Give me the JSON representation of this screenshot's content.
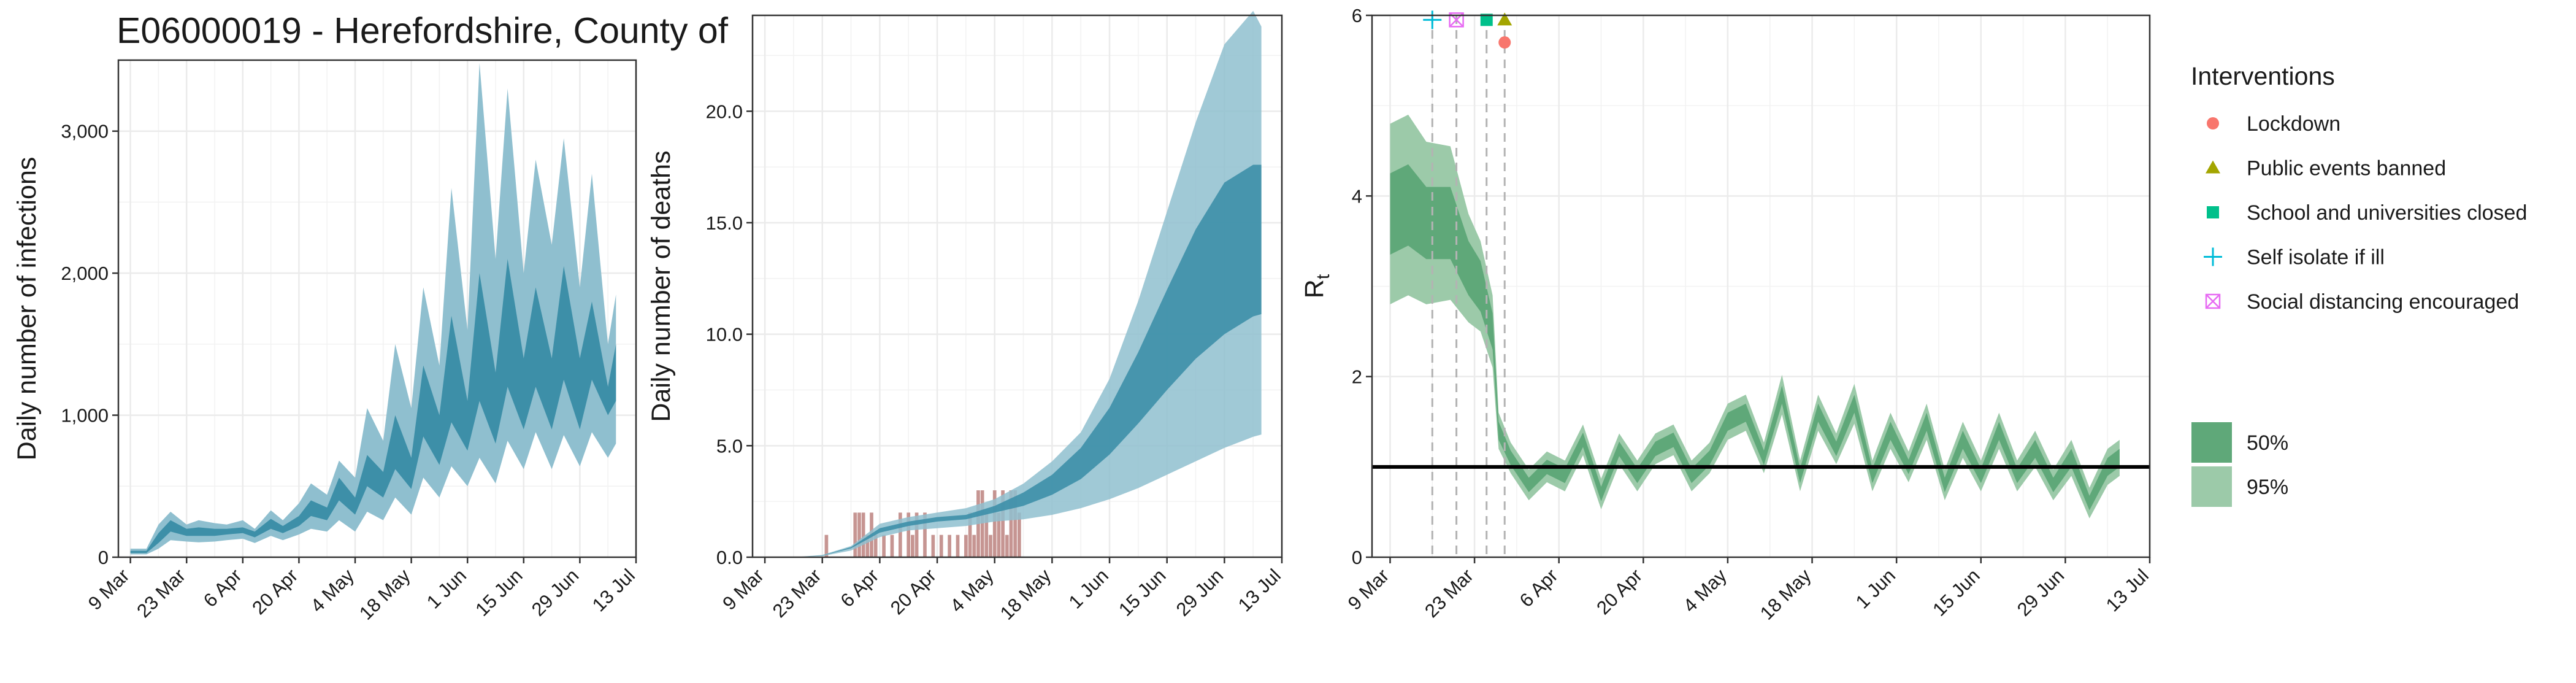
{
  "figure": {
    "title": "E06000019 - Herefordshire, County of"
  },
  "chart_data": [
    {
      "type": "area",
      "id": "infections",
      "ylabel": "Daily number of infections",
      "xlabel": "",
      "ylim": [
        0,
        3500
      ],
      "xlim": [
        -3,
        126
      ],
      "x_ticks": [
        0,
        14,
        28,
        42,
        56,
        70,
        84,
        98,
        112,
        126
      ],
      "x_tick_labels": [
        "9 Mar",
        "23 Mar",
        "6 Apr",
        "20 Apr",
        "4 May",
        "18 May",
        "1 Jun",
        "15 Jun",
        "29 Jun",
        "13 Jul"
      ],
      "y_ticks": [
        0,
        1000,
        2000,
        3000
      ],
      "y_tick_labels": [
        "0",
        "1,000",
        "2,000",
        "3,000"
      ],
      "grid": true,
      "colors": {
        "band95": "#8fbfcf",
        "band50": "#3d8fa8"
      },
      "knots_day": [
        0,
        4,
        7,
        10,
        14,
        17,
        21,
        24,
        28,
        31,
        35,
        38,
        42,
        45,
        49,
        52,
        56,
        59,
        63,
        66,
        70,
        73,
        77,
        80,
        84,
        87,
        91,
        94,
        98,
        101,
        105,
        108,
        112,
        115,
        119,
        121
      ],
      "ci95": {
        "lower": [
          20,
          20,
          60,
          120,
          110,
          105,
          110,
          120,
          130,
          100,
          150,
          120,
          160,
          200,
          180,
          260,
          180,
          320,
          260,
          420,
          300,
          560,
          420,
          640,
          500,
          700,
          520,
          820,
          620,
          880,
          620,
          860,
          640,
          880,
          700,
          800
        ],
        "upper": [
          60,
          60,
          230,
          320,
          230,
          260,
          240,
          230,
          260,
          200,
          330,
          260,
          380,
          520,
          440,
          680,
          560,
          1050,
          820,
          1500,
          1050,
          1900,
          1350,
          2600,
          1600,
          3480,
          2100,
          3300,
          2000,
          2800,
          2200,
          2950,
          1900,
          2700,
          1500,
          1850
        ]
      },
      "ci50": {
        "lower": [
          30,
          30,
          100,
          180,
          150,
          150,
          150,
          160,
          170,
          140,
          200,
          170,
          220,
          290,
          260,
          400,
          300,
          500,
          420,
          620,
          480,
          850,
          650,
          950,
          750,
          1100,
          800,
          1200,
          900,
          1200,
          900,
          1250,
          900,
          1250,
          1000,
          1100
        ],
        "upper": [
          45,
          45,
          170,
          260,
          200,
          210,
          200,
          200,
          210,
          180,
          270,
          220,
          290,
          400,
          350,
          560,
          420,
          720,
          600,
          1000,
          700,
          1350,
          1000,
          1700,
          1100,
          2000,
          1300,
          2100,
          1400,
          1900,
          1400,
          2050,
          1400,
          1800,
          1200,
          1500
        ]
      }
    },
    {
      "type": "area",
      "id": "deaths",
      "ylabel": "Daily number of deaths",
      "xlabel": "",
      "ylim": [
        0,
        24.3
      ],
      "xlim": [
        -3,
        126
      ],
      "x_ticks": [
        0,
        14,
        28,
        42,
        56,
        70,
        84,
        98,
        112,
        126
      ],
      "x_tick_labels": [
        "9 Mar",
        "23 Mar",
        "6 Apr",
        "20 Apr",
        "4 May",
        "18 May",
        "1 Jun",
        "15 Jun",
        "29 Jun",
        "13 Jul"
      ],
      "y_ticks": [
        0,
        5,
        10,
        15,
        20
      ],
      "y_tick_labels": [
        "0.0",
        "5.0",
        "10.0",
        "15.0",
        "20.0"
      ],
      "grid": true,
      "colors": {
        "band95": "#8fbfcf",
        "band50": "#3d8fa8",
        "observed": "#c08a86"
      },
      "knots_day": [
        0,
        7,
        14,
        21,
        28,
        35,
        42,
        49,
        56,
        63,
        70,
        77,
        84,
        91,
        98,
        105,
        112,
        119,
        121
      ],
      "ci95": {
        "lower": [
          0,
          0,
          0.05,
          0.3,
          0.9,
          1.2,
          1.3,
          1.4,
          1.6,
          1.7,
          1.9,
          2.2,
          2.6,
          3.1,
          3.7,
          4.3,
          4.9,
          5.4,
          5.5
        ],
        "upper": [
          0,
          0,
          0.1,
          0.5,
          1.5,
          1.8,
          2.0,
          2.2,
          2.6,
          3.3,
          4.3,
          5.6,
          8.0,
          11.5,
          15.5,
          19.5,
          23.0,
          24.5,
          23.8
        ]
      },
      "ci50": {
        "lower": [
          0,
          0,
          0.07,
          0.4,
          1.1,
          1.4,
          1.6,
          1.7,
          2.0,
          2.3,
          2.8,
          3.5,
          4.6,
          6.0,
          7.5,
          8.9,
          10.0,
          10.8,
          10.9
        ],
        "upper": [
          0,
          0,
          0.08,
          0.45,
          1.3,
          1.6,
          1.8,
          1.9,
          2.3,
          2.9,
          3.7,
          4.9,
          6.7,
          9.2,
          12.0,
          14.7,
          16.8,
          17.6,
          17.6
        ]
      },
      "observed_days": [
        15,
        22,
        23,
        24,
        25,
        26,
        27,
        29,
        31,
        33,
        35,
        36,
        37,
        39,
        41,
        43,
        45,
        47,
        49,
        50,
        51,
        52,
        53,
        54,
        55,
        56,
        57,
        58,
        59,
        60,
        61,
        62
      ],
      "observed_deaths": [
        1,
        2,
        2,
        2,
        1,
        2,
        1,
        1,
        1,
        2,
        2,
        1,
        2,
        2,
        1,
        1,
        1,
        1,
        1,
        2,
        1,
        3,
        3,
        2,
        1,
        3,
        2,
        3,
        1,
        3,
        3,
        2
      ]
    },
    {
      "type": "area",
      "id": "rt",
      "ylabel": "R",
      "ylabel_sub": "t",
      "xlabel": "",
      "ylim": [
        0,
        6
      ],
      "xlim": [
        -3,
        126
      ],
      "x_ticks": [
        0,
        14,
        28,
        42,
        56,
        70,
        84,
        98,
        112,
        126
      ],
      "x_tick_labels": [
        "9 Mar",
        "23 Mar",
        "6 Apr",
        "20 Apr",
        "4 May",
        "18 May",
        "1 Jun",
        "15 Jun",
        "29 Jun",
        "13 Jul"
      ],
      "y_ticks": [
        0,
        2,
        4,
        6
      ],
      "y_tick_labels": [
        "0",
        "2",
        "4",
        "6"
      ],
      "grid": true,
      "reference_line": 1,
      "colors": {
        "band95": "#9ccaa9",
        "band50": "#5fa879",
        "reference": "#000000",
        "marker_line": "#b3b3b3"
      },
      "knots_day": [
        0,
        3,
        6,
        10,
        13,
        15,
        17,
        18,
        20,
        23,
        26,
        29,
        32,
        35,
        38,
        41,
        44,
        47,
        50,
        53,
        56,
        59,
        62,
        65,
        68,
        71,
        74,
        77,
        80,
        83,
        86,
        89,
        92,
        95,
        98,
        101,
        104,
        107,
        110,
        113,
        116,
        119,
        121
      ],
      "median": [
        3.8,
        3.9,
        3.7,
        3.7,
        3.2,
        3.0,
        2.5,
        1.4,
        1.1,
        0.8,
        1.0,
        0.9,
        1.3,
        0.7,
        1.2,
        0.9,
        1.2,
        1.3,
        0.9,
        1.1,
        1.5,
        1.6,
        1.1,
        1.8,
        0.9,
        1.6,
        1.2,
        1.7,
        0.9,
        1.4,
        1.0,
        1.5,
        0.8,
        1.3,
        0.9,
        1.4,
        0.9,
        1.2,
        0.8,
        1.1,
        0.6,
        1.0,
        1.1
      ],
      "ci50_halfwidth": [
        0.45,
        0.45,
        0.4,
        0.4,
        0.3,
        0.28,
        0.2,
        0.1,
        0.08,
        0.08,
        0.08,
        0.08,
        0.08,
        0.08,
        0.08,
        0.08,
        0.08,
        0.08,
        0.08,
        0.08,
        0.1,
        0.1,
        0.08,
        0.1,
        0.08,
        0.1,
        0.08,
        0.1,
        0.08,
        0.1,
        0.08,
        0.1,
        0.08,
        0.1,
        0.08,
        0.1,
        0.08,
        0.1,
        0.08,
        0.1,
        0.08,
        0.1,
        0.1
      ],
      "ci95_halfwidth": [
        1.0,
        1.0,
        0.9,
        0.85,
        0.6,
        0.5,
        0.4,
        0.2,
        0.17,
        0.17,
        0.17,
        0.17,
        0.17,
        0.17,
        0.17,
        0.17,
        0.17,
        0.17,
        0.17,
        0.17,
        0.2,
        0.2,
        0.17,
        0.22,
        0.17,
        0.2,
        0.17,
        0.22,
        0.17,
        0.2,
        0.17,
        0.2,
        0.17,
        0.2,
        0.17,
        0.2,
        0.17,
        0.2,
        0.17,
        0.2,
        0.17,
        0.2,
        0.2
      ],
      "interventions": [
        {
          "day": 7,
          "y": 5.95,
          "marker": "cross",
          "color": "#00bcd8",
          "label": "Self isolate if ill"
        },
        {
          "day": 11,
          "y": 5.95,
          "marker": "boxx",
          "color": "#e76bf3",
          "label": "Social distancing encouraged"
        },
        {
          "day": 16,
          "y": 5.95,
          "marker": "square",
          "color": "#00c08b",
          "label": "School and universities closed"
        },
        {
          "day": 19,
          "y": 5.95,
          "marker": "triangle",
          "color": "#a3a500",
          "label": "Public events banned"
        },
        {
          "day": 19,
          "y": 5.7,
          "marker": "circle",
          "color": "#f8766d",
          "label": "Lockdown"
        }
      ]
    }
  ],
  "legend": {
    "interventions_title": "Interventions",
    "interventions": [
      {
        "label": "Lockdown",
        "marker": "circle",
        "color": "#f8766d"
      },
      {
        "label": "Public events banned",
        "marker": "triangle",
        "color": "#a3a500"
      },
      {
        "label": "School and universities closed",
        "marker": "square",
        "color": "#00c08b"
      },
      {
        "label": "Self isolate if ill",
        "marker": "cross",
        "color": "#00bcd8"
      },
      {
        "label": "Social distancing encouraged",
        "marker": "boxx",
        "color": "#e76bf3"
      }
    ],
    "bands": [
      {
        "label": "50%",
        "color": "#5fa879"
      },
      {
        "label": "95%",
        "color": "#9ccaa9"
      }
    ]
  }
}
